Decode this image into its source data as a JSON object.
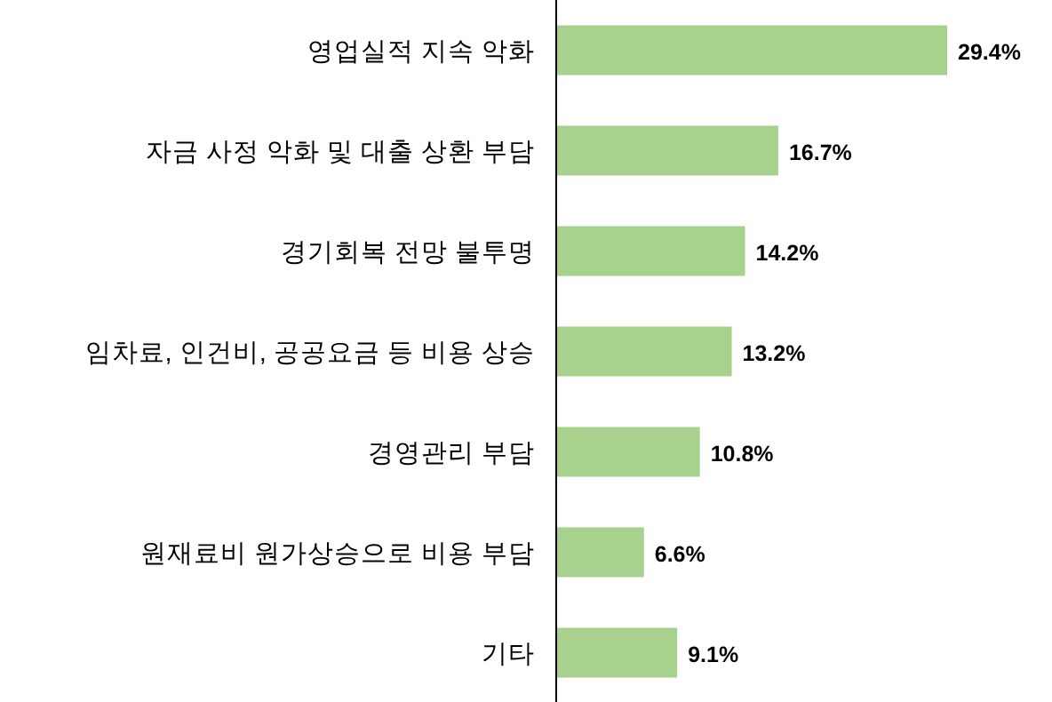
{
  "chart_data": {
    "type": "bar",
    "orientation": "horizontal",
    "categories": [
      "영업실적 지속 악화",
      "자금 사정 악화 및 대출 상환 부담",
      "경기회복 전망 불투명",
      "임차료, 인건비, 공공요금 등 비용 상승",
      "경영관리 부담",
      "원재료비 원가상승으로 비용 부담",
      "기타"
    ],
    "values": [
      29.4,
      16.7,
      14.2,
      13.2,
      10.8,
      6.6,
      9.1
    ],
    "value_labels": [
      "29.4%",
      "16.7%",
      "14.2%",
      "13.2%",
      "10.8%",
      "6.6%",
      "9.1%"
    ],
    "color": "#a9d18e"
  }
}
